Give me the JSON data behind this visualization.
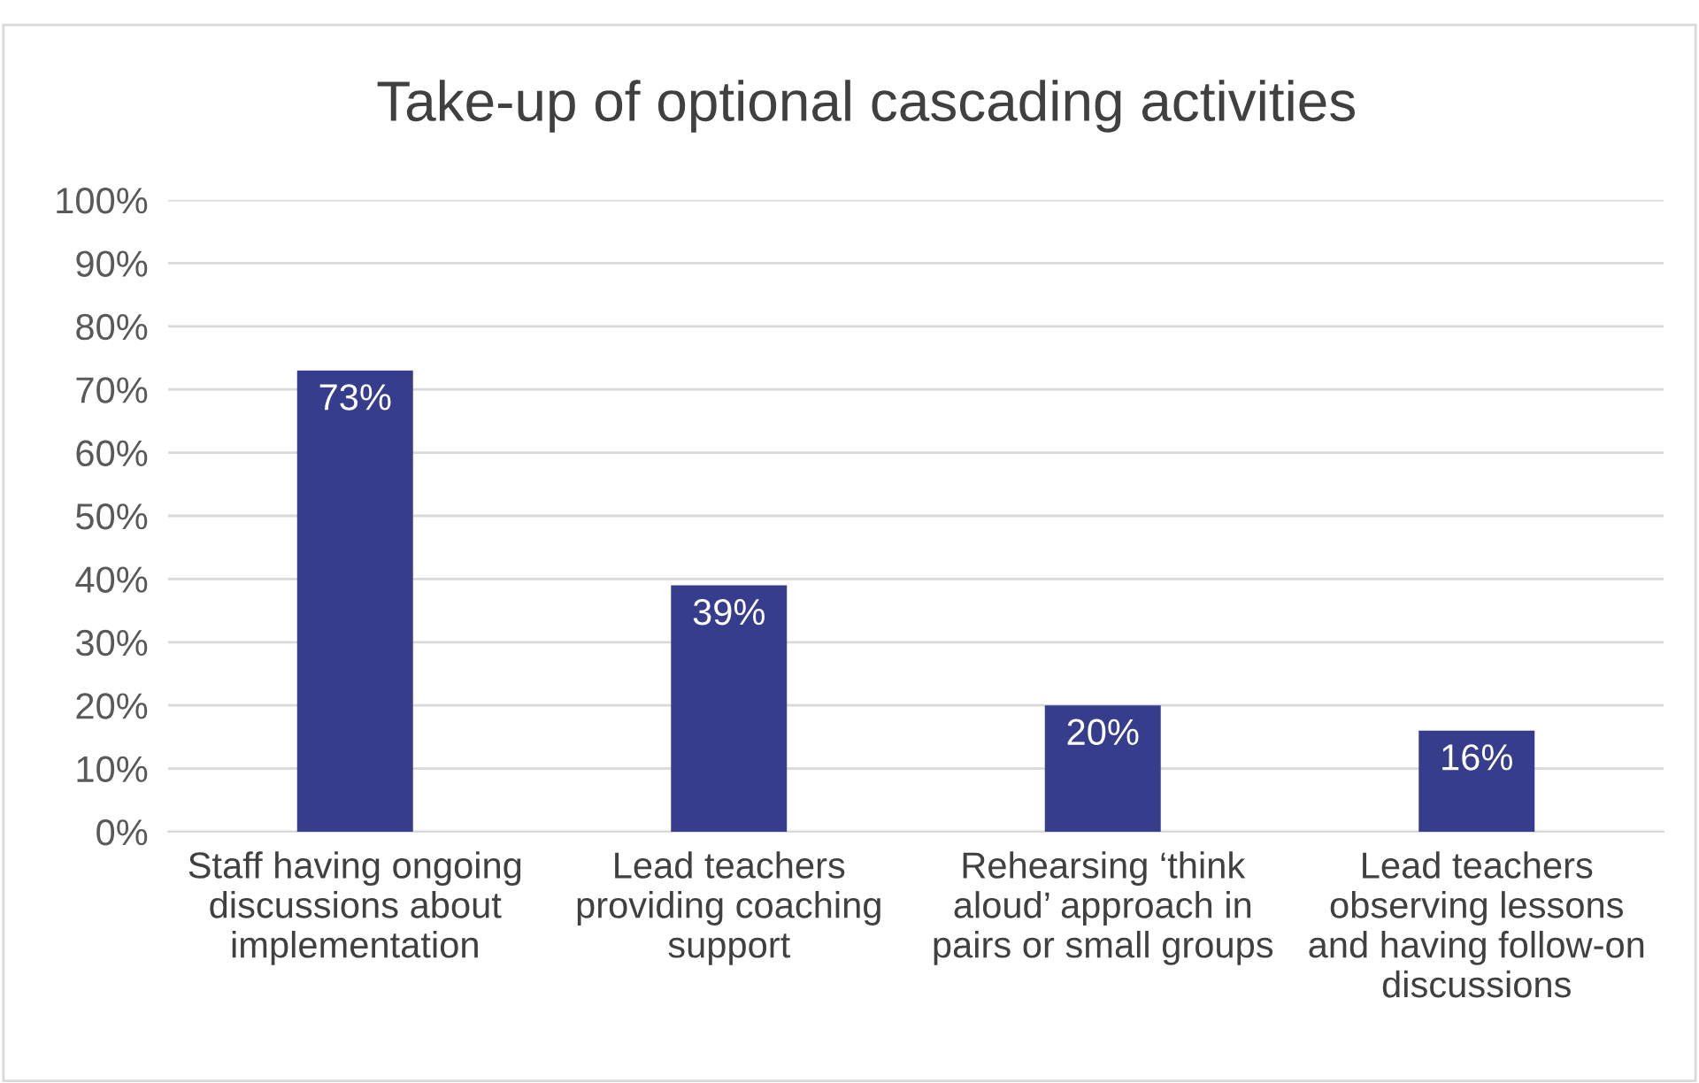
{
  "chart_data": {
    "type": "bar",
    "title": "Take-up of optional cascading activities",
    "categories": [
      "Staff having ongoing\ndiscussions about\nimplementation",
      "Lead teachers\nproviding coaching\nsupport",
      "Rehearsing ‘think\naloud’ approach in\npairs or small groups",
      "Lead teachers\nobserving lessons\nand having follow-on\ndiscussions"
    ],
    "values": [
      73,
      39,
      20,
      16
    ],
    "value_labels": [
      "73%",
      "39%",
      "20%",
      "16%"
    ],
    "color": "#363d8c",
    "ylim": [
      0,
      100
    ],
    "yticks": [
      {
        "value": 0,
        "label": "0%"
      },
      {
        "value": 10,
        "label": "10%"
      },
      {
        "value": 20,
        "label": "20%"
      },
      {
        "value": 30,
        "label": "30%"
      },
      {
        "value": 40,
        "label": "40%"
      },
      {
        "value": 50,
        "label": "50%"
      },
      {
        "value": 60,
        "label": "60%"
      },
      {
        "value": 70,
        "label": "70%"
      },
      {
        "value": 80,
        "label": "80%"
      },
      {
        "value": 90,
        "label": "90%"
      },
      {
        "value": 100,
        "label": "100%"
      }
    ],
    "grid": "y",
    "legend": false
  }
}
